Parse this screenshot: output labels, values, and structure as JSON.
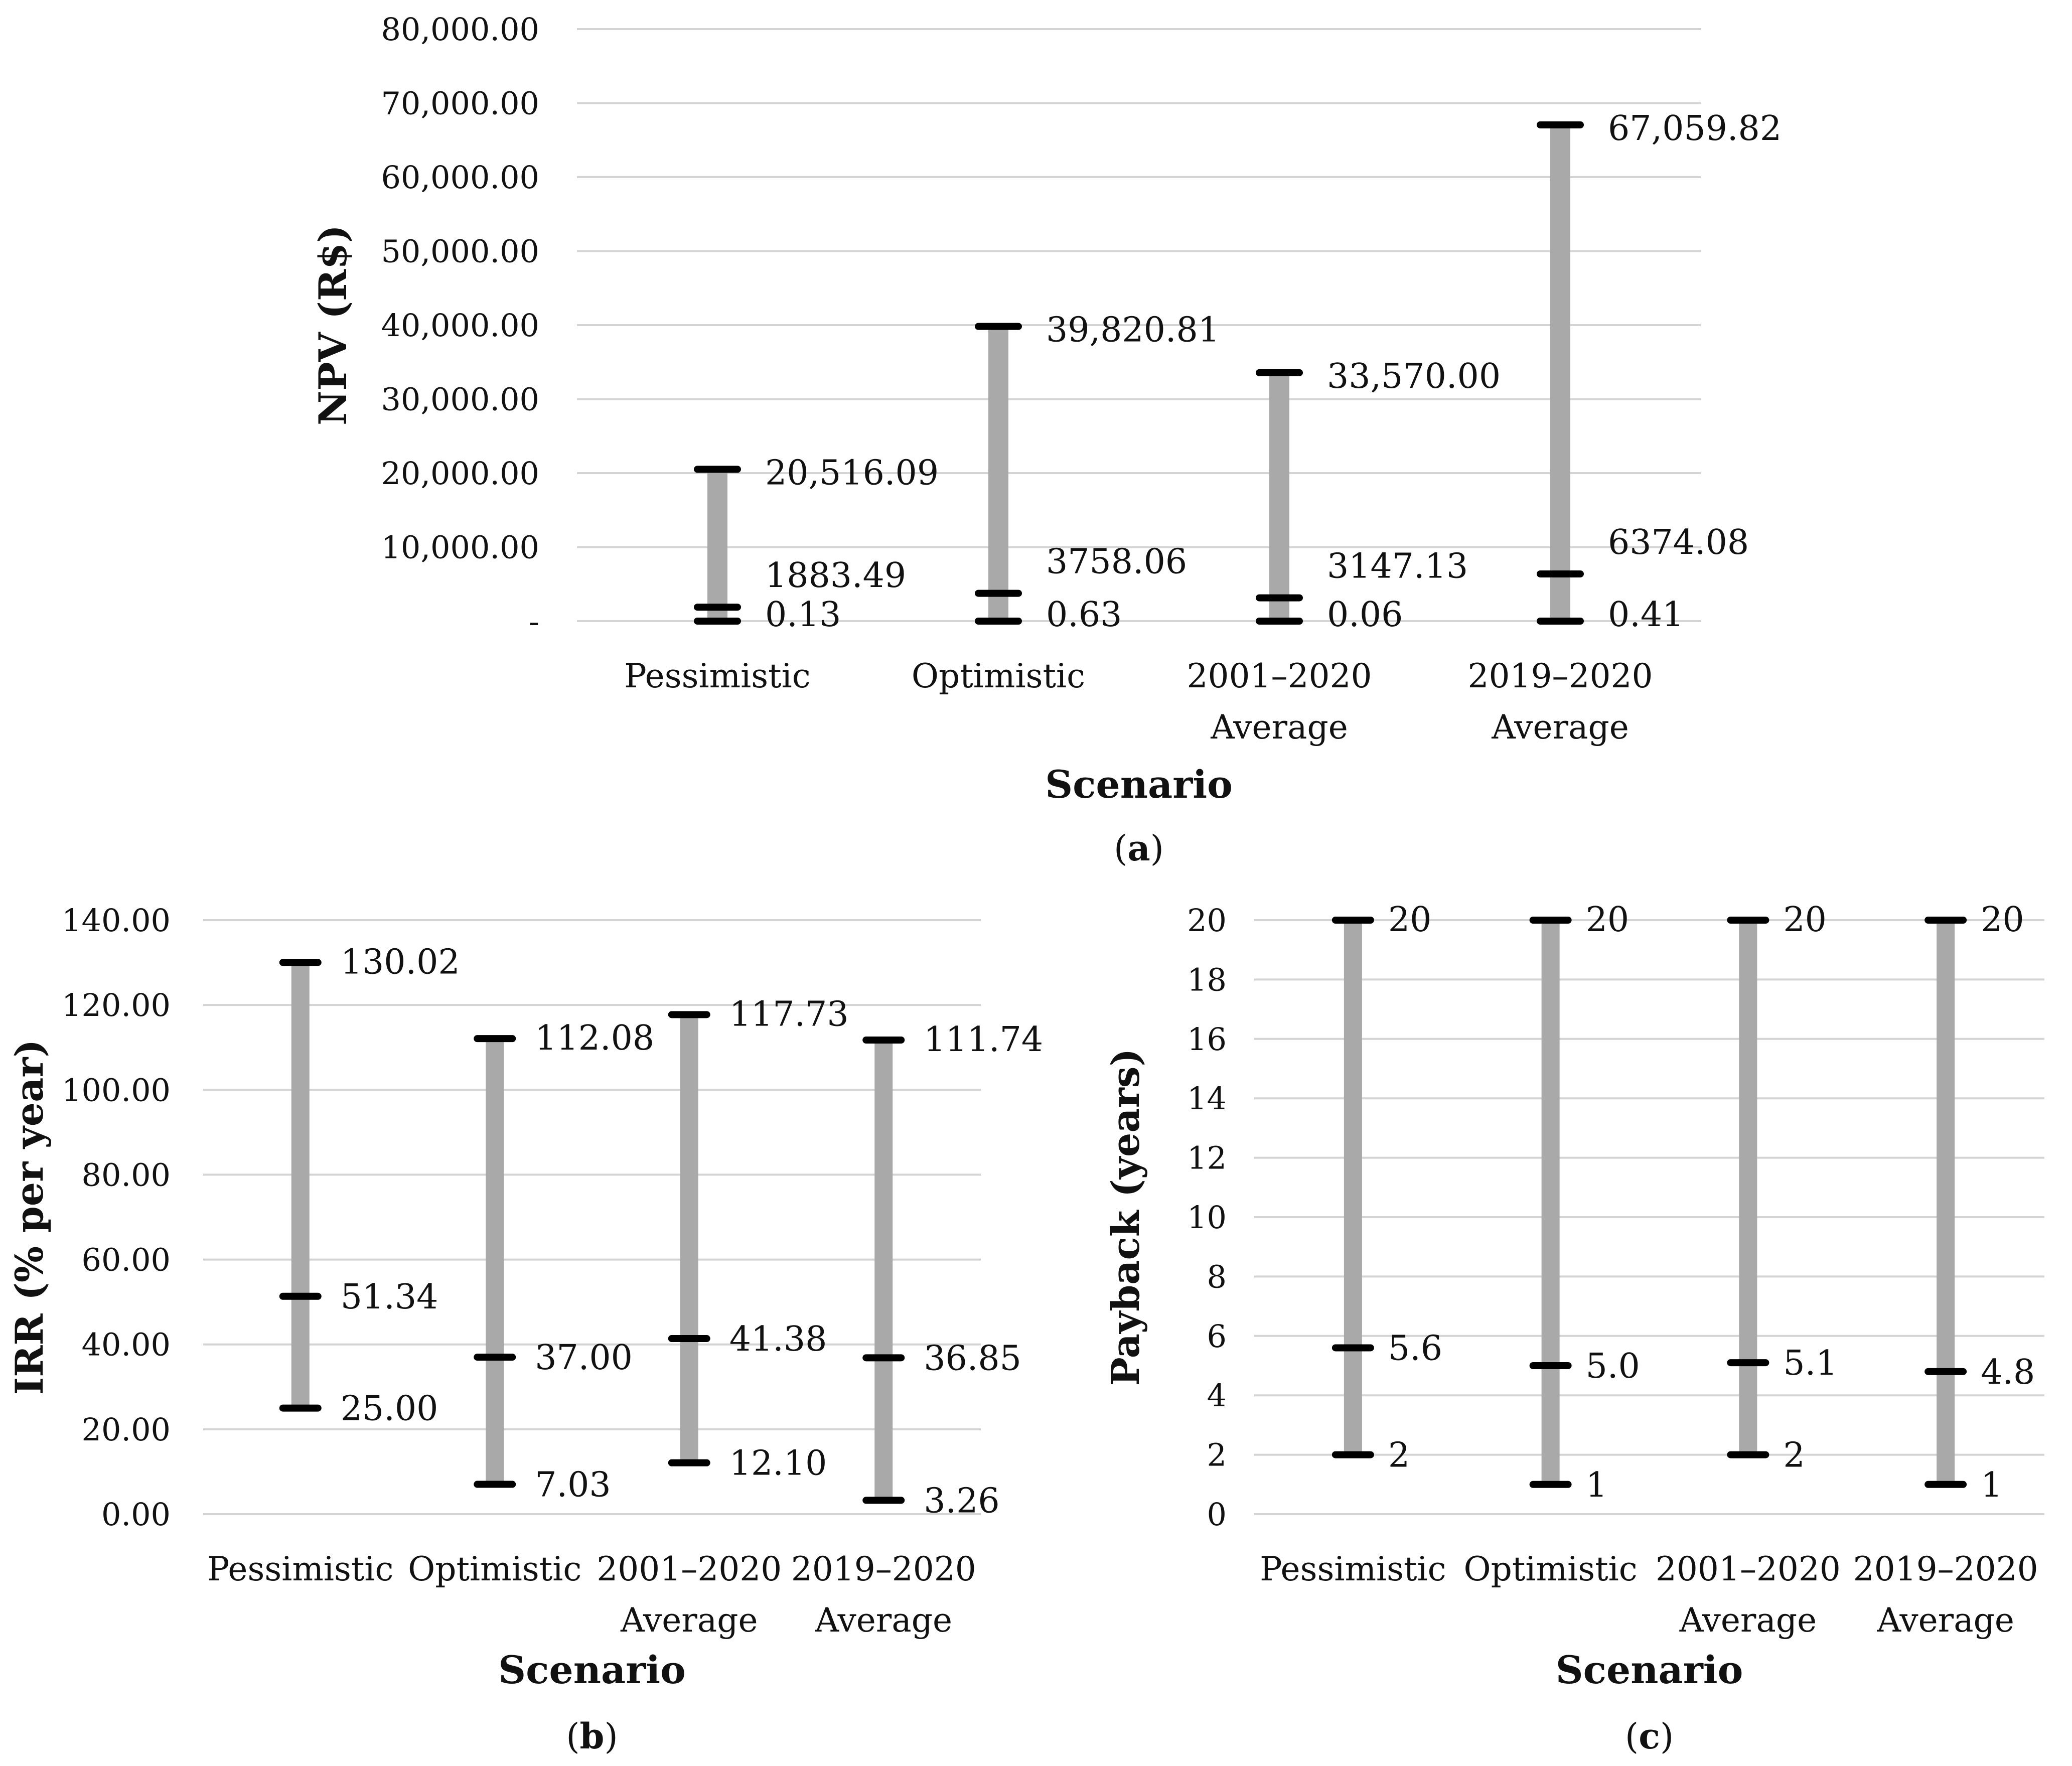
{
  "chart_data": [
    {
      "type": "range-dot",
      "ylabel": "NPV (R$)",
      "xlabel": "Scenario",
      "caption_letter": "a",
      "ylim": [
        0,
        80000
      ],
      "yticks": [
        "-",
        "10,000.00",
        "20,000.00",
        "30,000.00",
        "40,000.00",
        "50,000.00",
        "60,000.00",
        "70,000.00",
        "80,000.00"
      ],
      "ytick_values": [
        0,
        10000,
        20000,
        30000,
        40000,
        50000,
        60000,
        70000,
        80000
      ],
      "categories": [
        [
          "Pessimistic"
        ],
        [
          "Optimistic"
        ],
        [
          "2001–2020",
          "Average"
        ],
        [
          "2019–2020",
          "Average"
        ]
      ],
      "points": [
        {
          "min": 0.13,
          "mid": 1883.49,
          "max": 20516.09,
          "min_label": "0.13",
          "mid_label": "1883.49",
          "max_label": "20,516.09"
        },
        {
          "min": 0.63,
          "mid": 3758.06,
          "max": 39820.81,
          "min_label": "0.63",
          "mid_label": "3758.06",
          "max_label": "39,820.81"
        },
        {
          "min": 0.06,
          "mid": 3147.13,
          "max": 33570.0,
          "min_label": "0.06",
          "mid_label": "3147.13",
          "max_label": "33,570.00"
        },
        {
          "min": 0.41,
          "mid": 6374.08,
          "max": 67059.82,
          "min_label": "0.41",
          "mid_label": "6374.08",
          "max_label": "67,059.82"
        }
      ]
    },
    {
      "type": "range-dot",
      "ylabel": "IRR (% per year)",
      "xlabel": "Scenario",
      "caption_letter": "b",
      "ylim": [
        0,
        140
      ],
      "yticks": [
        "0.00",
        "20.00",
        "40.00",
        "60.00",
        "80.00",
        "100.00",
        "120.00",
        "140.00"
      ],
      "ytick_values": [
        0,
        20,
        40,
        60,
        80,
        100,
        120,
        140
      ],
      "categories": [
        [
          "Pessimistic"
        ],
        [
          "Optimistic"
        ],
        [
          "2001–2020",
          "Average"
        ],
        [
          "2019–2020",
          "Average"
        ]
      ],
      "points": [
        {
          "min": 25.0,
          "mid": 51.34,
          "max": 130.02,
          "min_label": "25.00",
          "mid_label": "51.34",
          "max_label": "130.02"
        },
        {
          "min": 7.03,
          "mid": 37.0,
          "max": 112.08,
          "min_label": "7.03",
          "mid_label": "37.00",
          "max_label": "112.08"
        },
        {
          "min": 12.1,
          "mid": 41.38,
          "max": 117.73,
          "min_label": "12.10",
          "mid_label": "41.38",
          "max_label": "117.73"
        },
        {
          "min": 3.26,
          "mid": 36.85,
          "max": 111.74,
          "min_label": "3.26",
          "mid_label": "36.85",
          "max_label": "111.74"
        }
      ]
    },
    {
      "type": "range-dot",
      "ylabel": "Payback (years)",
      "xlabel": "Scenario",
      "caption_letter": "c",
      "ylim": [
        0,
        20
      ],
      "yticks": [
        "0",
        "2",
        "4",
        "6",
        "8",
        "10",
        "12",
        "14",
        "16",
        "18",
        "20"
      ],
      "ytick_values": [
        0,
        2,
        4,
        6,
        8,
        10,
        12,
        14,
        16,
        18,
        20
      ],
      "categories": [
        [
          "Pessimistic"
        ],
        [
          "Optimistic"
        ],
        [
          "2001–2020",
          "Average"
        ],
        [
          "2019–2020",
          "Average"
        ]
      ],
      "points": [
        {
          "min": 2,
          "mid": 5.6,
          "max": 20,
          "min_label": "2",
          "mid_label": "5.6",
          "max_label": "20"
        },
        {
          "min": 1,
          "mid": 5.0,
          "max": 20,
          "min_label": "1",
          "mid_label": "5.0",
          "max_label": "20"
        },
        {
          "min": 2,
          "mid": 5.1,
          "max": 20,
          "min_label": "2",
          "mid_label": "5.1",
          "max_label": "20"
        },
        {
          "min": 1,
          "mid": 4.8,
          "max": 20,
          "min_label": "1",
          "mid_label": "4.8",
          "max_label": "20"
        }
      ]
    }
  ]
}
